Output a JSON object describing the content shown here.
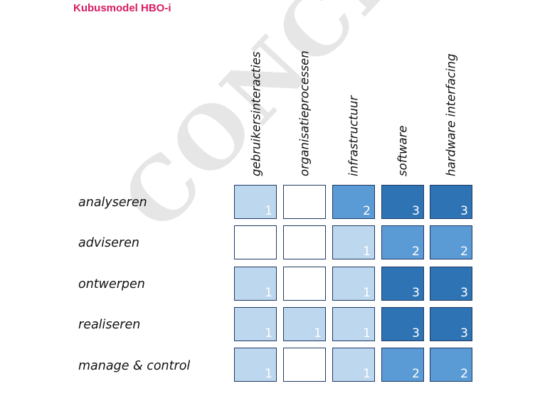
{
  "title": "Kubusmodel HBO-i",
  "watermark": "CONCEPT",
  "columns": [
    "gebruikersinteracties",
    "organisatieprocessen",
    "infrastructuur",
    "software",
    "hardware interfacing"
  ],
  "rows": [
    {
      "label": "analyseren",
      "cells": [
        "1",
        "",
        "2",
        "3",
        "3"
      ]
    },
    {
      "label": "adviseren",
      "cells": [
        "",
        "",
        "1",
        "2",
        "2"
      ]
    },
    {
      "label": "ontwerpen",
      "cells": [
        "1",
        "",
        "1",
        "3",
        "3"
      ]
    },
    {
      "label": "realiseren",
      "cells": [
        "1",
        "1",
        "1",
        "3",
        "3"
      ]
    },
    {
      "label": "manage & control",
      "cells": [
        "1",
        "",
        "1",
        "2",
        "2"
      ]
    }
  ],
  "colors": {
    "level_0": "#ffffff",
    "level_1": "#bdd7ee",
    "level_2": "#5b9bd5",
    "level_3": "#2e74b5",
    "title": "#d81b60",
    "cell_border": "#1f3864"
  }
}
